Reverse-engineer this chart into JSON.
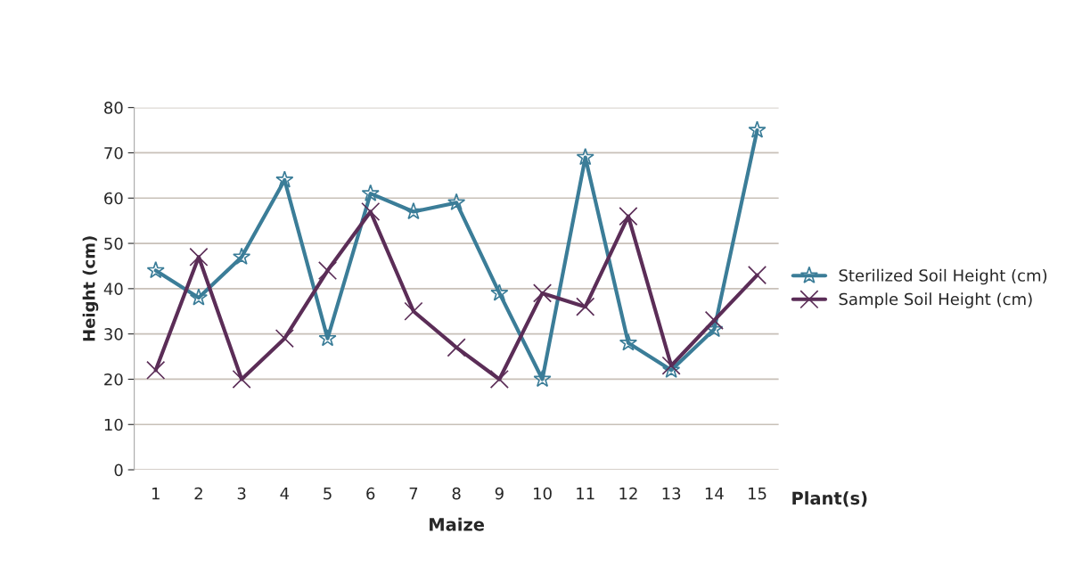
{
  "chart_data": {
    "type": "line",
    "xlabel": "Maize",
    "ylabel": "Height (cm)",
    "categories": [
      "1",
      "2",
      "3",
      "4",
      "5",
      "6",
      "7",
      "8",
      "9",
      "10",
      "11",
      "12",
      "13",
      "14",
      "15"
    ],
    "series": [
      {
        "name": "Sterilized Soil Height (cm)",
        "color": "#3b7d98",
        "marker": "star",
        "values": [
          44,
          38,
          47,
          64,
          29,
          61,
          57,
          59,
          39,
          20,
          69,
          28,
          22,
          31,
          75
        ]
      },
      {
        "name": "Sample Soil Height (cm)",
        "color": "#5b2d57",
        "marker": "cross",
        "values": [
          22,
          47,
          20,
          29,
          44,
          57,
          35,
          27,
          20,
          39,
          36,
          56,
          23,
          33,
          43
        ]
      }
    ],
    "ylim": [
      0,
      80
    ],
    "yticks": [
      0,
      10,
      20,
      30,
      40,
      50,
      60,
      70,
      80
    ],
    "grid": "y",
    "legend": "right",
    "annotations": [
      "Plant(s)"
    ]
  }
}
